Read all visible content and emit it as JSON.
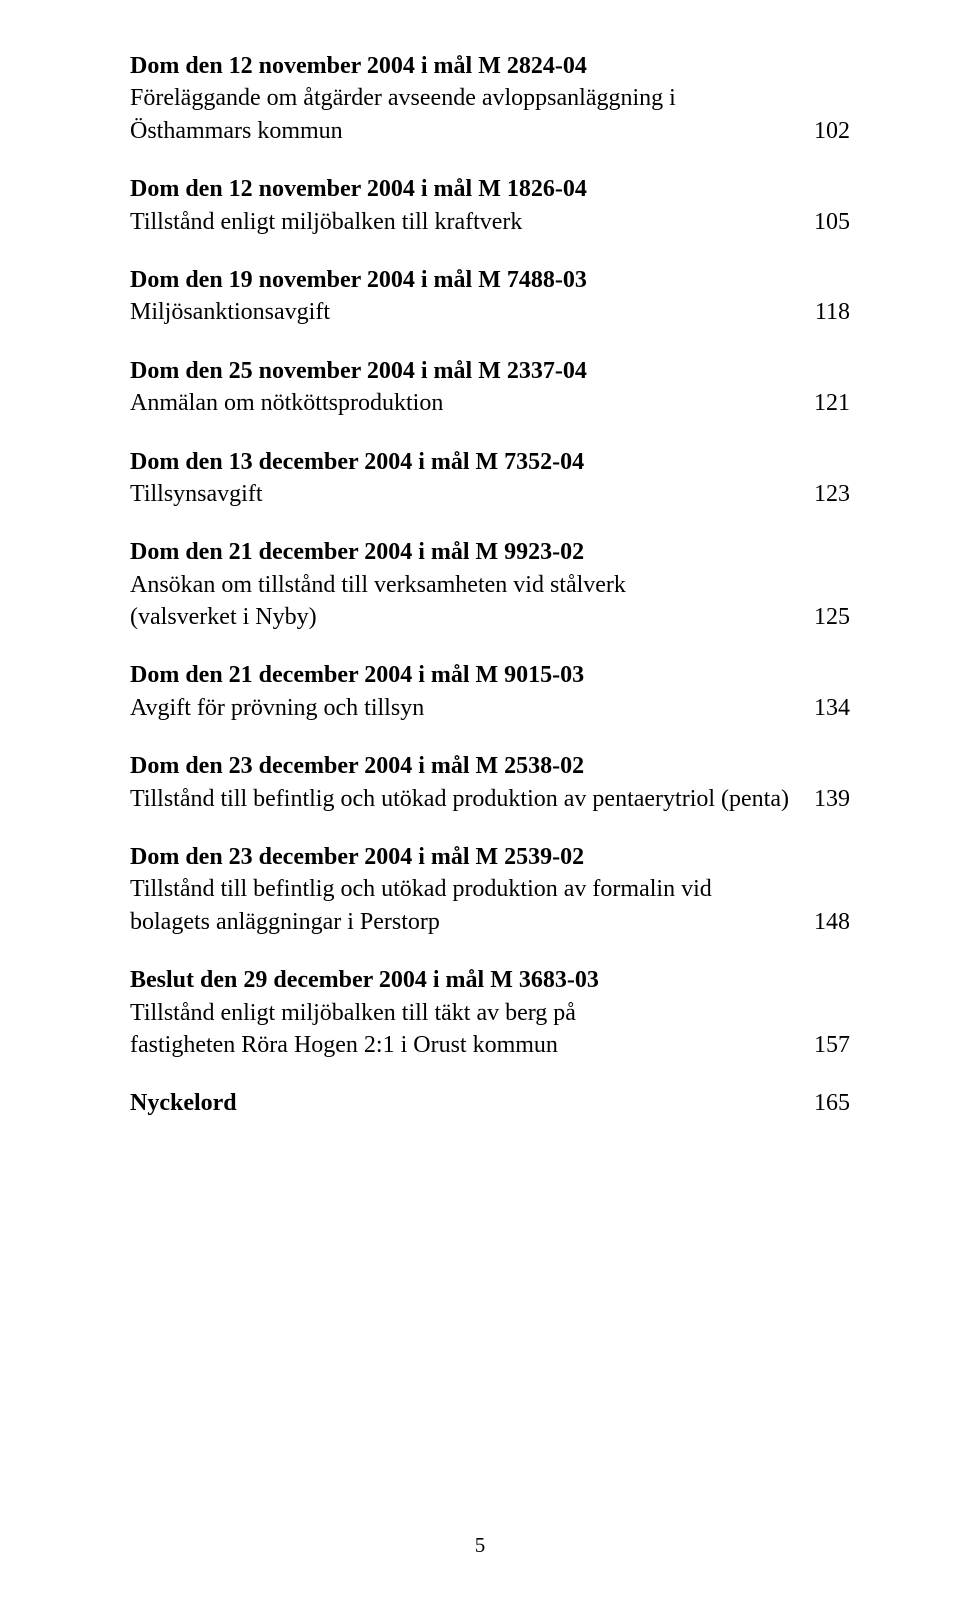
{
  "entries": [
    {
      "title": "Dom den 12 november 2004 i mål M 2824-04",
      "desc_lines": [
        "Föreläggande om åtgärder avseende avloppsanläggning i",
        "Östhammars kommun"
      ],
      "page": "102"
    },
    {
      "title": "Dom den 12 november 2004 i mål M 1826-04",
      "desc_lines": [
        "Tillstånd enligt miljöbalken till kraftverk"
      ],
      "page": "105"
    },
    {
      "title": "Dom den 19 november 2004 i mål M 7488-03",
      "desc_lines": [
        "Miljösanktionsavgift"
      ],
      "page": "118"
    },
    {
      "title": "Dom den 25 november 2004 i mål M 2337-04",
      "desc_lines": [
        "Anmälan om nötköttsproduktion"
      ],
      "page": "121"
    },
    {
      "title": "Dom den 13 december 2004 i mål M 7352-04",
      "desc_lines": [
        "Tillsynsavgift"
      ],
      "page": "123"
    },
    {
      "title": "Dom den 21 december 2004 i mål M 9923-02",
      "desc_lines": [
        "Ansökan om tillstånd till verksamheten vid stålverk",
        "(valsverket i Nyby)"
      ],
      "page": "125"
    },
    {
      "title": "Dom den 21 december 2004 i mål M 9015-03",
      "desc_lines": [
        "Avgift för prövning och tillsyn"
      ],
      "page": "134"
    },
    {
      "title": "Dom den 23 december 2004 i mål M 2538-02",
      "desc_lines": [
        "Tillstånd till befintlig och utökad produktion av pentaerytriol (penta)"
      ],
      "page": "139"
    },
    {
      "title": "Dom den 23 december 2004 i mål M 2539-02",
      "desc_lines": [
        "Tillstånd till befintlig och utökad produktion av formalin vid",
        "bolagets anläggningar i Perstorp"
      ],
      "page": "148"
    },
    {
      "title": "Beslut den 29 december 2004 i mål M 3683-03",
      "desc_lines": [
        "Tillstånd enligt miljöbalken till täkt av berg på",
        "fastigheten Röra Hogen 2:1 i Orust kommun"
      ],
      "page": "157"
    }
  ],
  "keyword": {
    "label": "Nyckelord",
    "page": "165"
  },
  "footer_page_number": "5"
}
